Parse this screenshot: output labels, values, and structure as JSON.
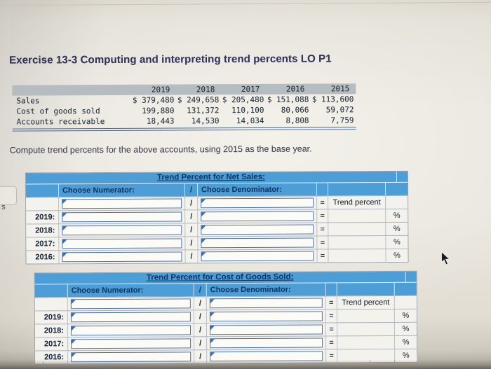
{
  "page": {
    "title": "Exercise 13-3 Computing and interpreting trend percents LO P1",
    "instruction": "Compute trend percents for the above accounts, using 2015 as the base year.",
    "edge_fragment_text": "s",
    "mouse_cursor": "arrow-pointer"
  },
  "financial_table": {
    "header_years": [
      "2019",
      "2018",
      "2017",
      "2016",
      "2015"
    ],
    "rows": [
      {
        "label": "Sales",
        "values": [
          "$ 379,480",
          "$ 249,658",
          "$ 205,480",
          "$ 151,088",
          "$ 113,600"
        ]
      },
      {
        "label": "Cost of goods sold",
        "values": [
          "199,880",
          "131,372",
          "110,100",
          "80,066",
          "59,072"
        ]
      },
      {
        "label": "Accounts receivable",
        "values": [
          "18,443",
          "14,530",
          "14,034",
          "8,808",
          "7,759"
        ]
      }
    ]
  },
  "trend_tables": [
    {
      "id": "net-sales",
      "title": "Trend Percent for Net Sales:",
      "numerator_header": "Choose Numerator:",
      "denominator_header": "Choose Denominator:",
      "slash": "/",
      "equals": "=",
      "result_header": "Trend percent",
      "percent_symbol": "%",
      "rows": [
        {
          "label": ""
        },
        {
          "label": "2019:"
        },
        {
          "label": "2018:"
        },
        {
          "label": "2017:"
        },
        {
          "label": "2016:"
        }
      ]
    },
    {
      "id": "cost-of-goods-sold",
      "title": "Trend Percent for Cost of Goods Sold:",
      "numerator_header": "Choose Numerator:",
      "denominator_header": "Choose Denominator:",
      "slash": "/",
      "equals": "=",
      "result_header": "Trend percent",
      "percent_symbol": "%",
      "rows": [
        {
          "label": ""
        },
        {
          "label": "2019:"
        },
        {
          "label": "2018:"
        },
        {
          "label": "2017:"
        },
        {
          "label": "2016:"
        }
      ]
    }
  ],
  "colors": {
    "header_blue": "#4d9dd6",
    "navy_text": "#0e3a6b",
    "cell_border": "#98a0aa",
    "input_border": "#4a74b0",
    "dropdown_flag": "#2f6bbf",
    "fin_header_bg": "#b5bdc0",
    "fin_bottom_border": "#4a6b94",
    "page_background": "#e9e6de",
    "title_text": "#32325a"
  }
}
